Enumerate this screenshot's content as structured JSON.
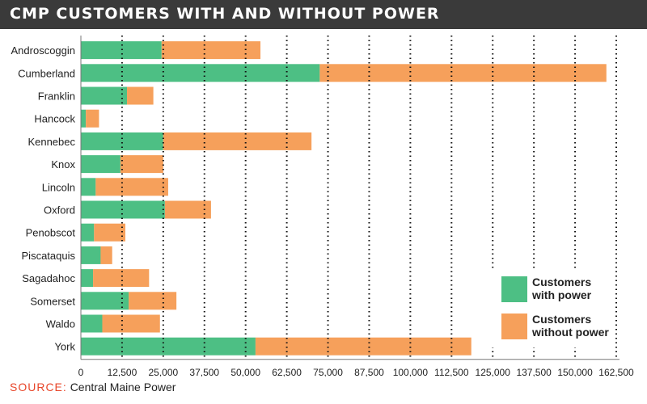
{
  "title": "CMP CUSTOMERS WITH AND WITHOUT POWER",
  "source_label": "SOURCE:",
  "source_text": "Central Maine Power",
  "colors": {
    "with_power": "#4dbf84",
    "without_power": "#f6a05b",
    "title_bg": "#3a3a3a",
    "source_label": "#e8462a"
  },
  "chart_data": {
    "type": "bar",
    "orientation": "horizontal",
    "stacked": true,
    "categories": [
      "Androscoggin",
      "Cumberland",
      "Franklin",
      "Hancock",
      "Kennebec",
      "Knox",
      "Lincoln",
      "Oxford",
      "Penobscot",
      "Piscataquis",
      "Sagadahoc",
      "Somerset",
      "Waldo",
      "York"
    ],
    "series": [
      {
        "name": "Customers with power",
        "color": "#4dbf84",
        "values": [
          24500,
          72500,
          14000,
          1500,
          25000,
          12000,
          4500,
          25500,
          4000,
          6000,
          3700,
          14500,
          6500,
          53000
        ]
      },
      {
        "name": "Customers without power",
        "color": "#f6a05b",
        "values": [
          30000,
          87000,
          8000,
          4000,
          45000,
          13000,
          22000,
          14000,
          9500,
          3500,
          17000,
          14500,
          17500,
          65500
        ]
      }
    ],
    "xlim": [
      0,
      162500
    ],
    "xticks": [
      "0",
      "12,500",
      "25,000",
      "37,500",
      "50,000",
      "62,500",
      "75,000",
      "87,500",
      "100,000",
      "112,500",
      "125,000",
      "137,500",
      "150,000",
      "162,500"
    ],
    "grid": "dotted vertical",
    "legend_position": "bottom-right"
  }
}
